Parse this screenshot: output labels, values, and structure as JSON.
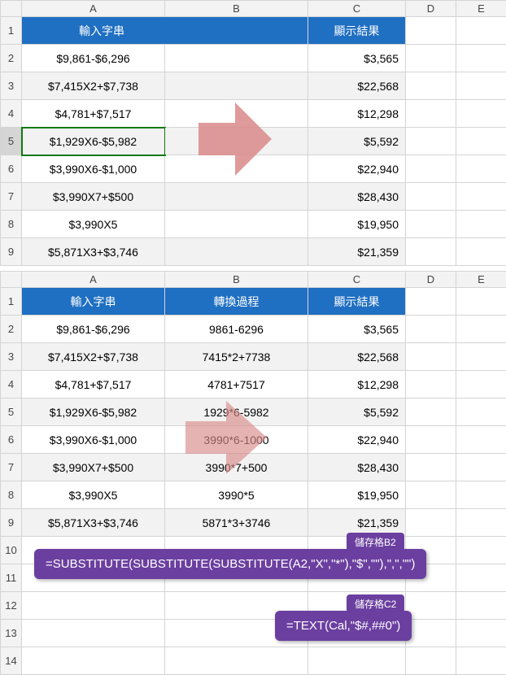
{
  "top": {
    "colHeaders": [
      "A",
      "B",
      "C",
      "D",
      "E"
    ],
    "header": {
      "a": "輸入字串",
      "c": "顯示結果"
    },
    "rows": [
      {
        "a": "$9,861-$6,296",
        "c": "$3,565"
      },
      {
        "a": "$7,415X2+$7,738",
        "c": "$22,568"
      },
      {
        "a": "$4,781+$7,517",
        "c": "$12,298"
      },
      {
        "a": "$1,929X6-$5,982",
        "c": "$5,592"
      },
      {
        "a": "$3,990X6-$1,000",
        "c": "$22,940"
      },
      {
        "a": "$3,990X7+$500",
        "c": "$28,430"
      },
      {
        "a": "$3,990X5",
        "c": "$19,950"
      },
      {
        "a": "$5,871X3+$3,746",
        "c": "$21,359"
      }
    ],
    "selectedRow": 5,
    "arrowColor": "#d98a8a"
  },
  "bottom": {
    "colHeaders": [
      "A",
      "B",
      "C",
      "D",
      "E"
    ],
    "header": {
      "a": "輸入字串",
      "b": "轉換過程",
      "c": "顯示結果"
    },
    "rows": [
      {
        "a": "$9,861-$6,296",
        "b": "9861-6296",
        "c": "$3,565"
      },
      {
        "a": "$7,415X2+$7,738",
        "b": "7415*2+7738",
        "c": "$22,568"
      },
      {
        "a": "$4,781+$7,517",
        "b": "4781+7517",
        "c": "$12,298"
      },
      {
        "a": "$1,929X6-$5,982",
        "b": "1929*6-5982",
        "c": "$5,592"
      },
      {
        "a": "$3,990X6-$1,000",
        "b": "3990*6-1000",
        "c": "$22,940"
      },
      {
        "a": "$3,990X7+$500",
        "b": "3990*7+500",
        "c": "$28,430"
      },
      {
        "a": "$3,990X5",
        "b": "3990*5",
        "c": "$19,950"
      },
      {
        "a": "$5,871X3+$3,746",
        "b": "5871*3+3746",
        "c": "$21,359"
      }
    ],
    "extraRows": [
      "10",
      "11",
      "12",
      "13",
      "14"
    ],
    "arrowColor": "#d98a8a"
  },
  "formulas": {
    "b2": {
      "label": "儲存格B2",
      "text": "=SUBSTITUTE(SUBSTITUTE(SUBSTITUTE(A2,\"X\",\"*\"),\"$\",\"\"),\",\",\"\")"
    },
    "c2": {
      "label": "儲存格C2",
      "text": "=TEXT(Cal,\"$#,##0\")"
    }
  }
}
